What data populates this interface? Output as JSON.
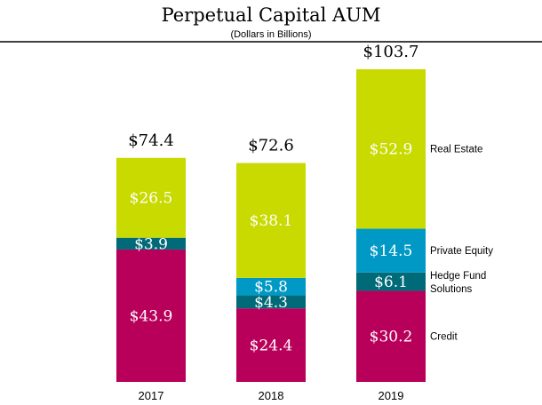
{
  "chart_data": {
    "type": "bar",
    "stacked": true,
    "title": "Perpetual Capital AUM",
    "subtitle": "(Dollars in Billions)",
    "categories": [
      "2017",
      "2018",
      "2019"
    ],
    "series": [
      {
        "name": "Credit",
        "color": "#B8005A",
        "values": [
          43.9,
          24.4,
          30.2
        ],
        "labels": [
          "$43.9",
          "$24.4",
          "$30.2"
        ]
      },
      {
        "name": "Hedge Fund Solutions",
        "color": "#006A78",
        "values": [
          3.9,
          4.3,
          6.1
        ],
        "labels": [
          "$3.9",
          "$4.3",
          "$6.1"
        ]
      },
      {
        "name": "Private Equity",
        "color": "#0099C6",
        "values": [
          0,
          5.8,
          14.5
        ],
        "labels": [
          "",
          "$5.8",
          "$14.5"
        ]
      },
      {
        "name": "Real Estate",
        "color": "#C8DA00",
        "values": [
          26.5,
          38.1,
          52.9
        ],
        "labels": [
          "$26.5",
          "$38.1",
          "$52.9"
        ]
      }
    ],
    "totals": [
      "$74.4",
      "$72.6",
      "$103.7"
    ],
    "legend": {
      "placement": "right",
      "line1": [
        "Credit",
        "Hedge Fund",
        "Private Equity",
        "Real Estate"
      ],
      "line2": [
        "",
        "Solutions",
        "",
        ""
      ]
    },
    "xlabel": "",
    "ylabel": "",
    "ylim": [
      0,
      110
    ],
    "grid": false
  }
}
